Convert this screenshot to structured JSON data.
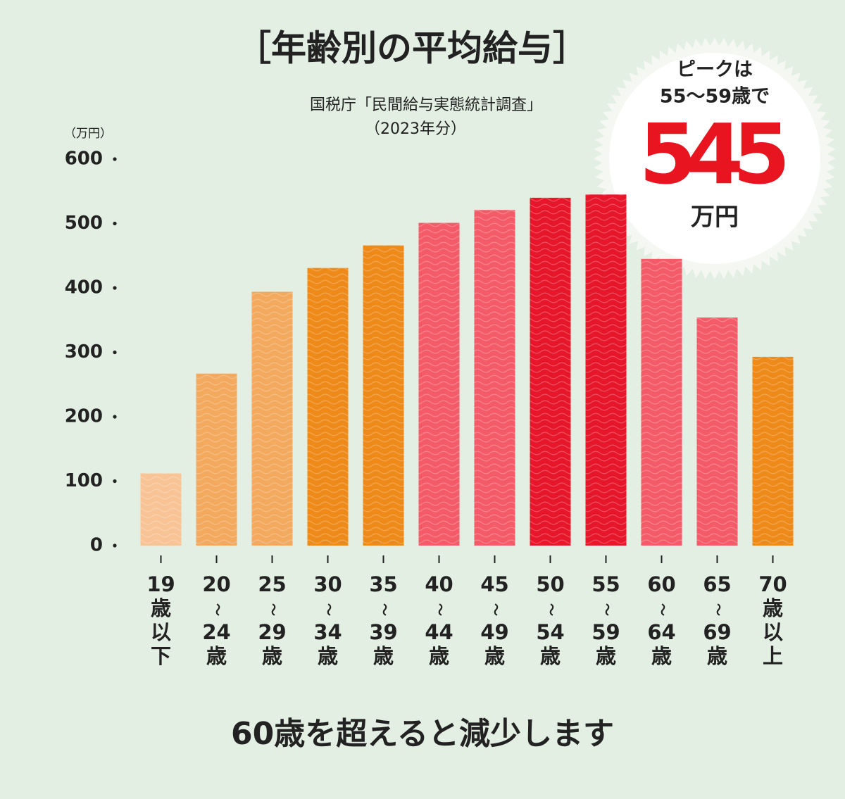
{
  "chart_data": {
    "type": "bar",
    "title": "［年齢別の平均給与］",
    "subtitle": [
      "国税庁「民間給与実態統計調査」",
      "（2023年分）"
    ],
    "y_unit": "（万円）",
    "categories": [
      [
        "19",
        "歳",
        "以",
        "下"
      ],
      [
        "20",
        "〜",
        "24",
        "歳"
      ],
      [
        "25",
        "〜",
        "29",
        "歳"
      ],
      [
        "30",
        "〜",
        "34",
        "歳"
      ],
      [
        "35",
        "〜",
        "39",
        "歳"
      ],
      [
        "40",
        "〜",
        "44",
        "歳"
      ],
      [
        "45",
        "〜",
        "49",
        "歳"
      ],
      [
        "50",
        "〜",
        "54",
        "歳"
      ],
      [
        "55",
        "〜",
        "59",
        "歳"
      ],
      [
        "60",
        "〜",
        "64",
        "歳"
      ],
      [
        "65",
        "〜",
        "69",
        "歳"
      ],
      [
        "70",
        "歳",
        "以",
        "上"
      ]
    ],
    "values": [
      112,
      267,
      394,
      431,
      466,
      501,
      521,
      540,
      545,
      445,
      354,
      293
    ],
    "colors": [
      "#f8c495",
      "#f3a95e",
      "#f3a95e",
      "#ee8a1a",
      "#ee8a1a",
      "#f45b68",
      "#f45b68",
      "#e7172b",
      "#e7172b",
      "#f45b68",
      "#f45b68",
      "#ee8a1a"
    ],
    "ylim": [
      0,
      600
    ],
    "yticks": [
      0,
      100,
      200,
      300,
      400,
      500,
      600
    ],
    "annotation": [
      "ピークは",
      "55～59歳で",
      "545",
      "万円"
    ],
    "footer": "60歳を超えると減少します"
  }
}
